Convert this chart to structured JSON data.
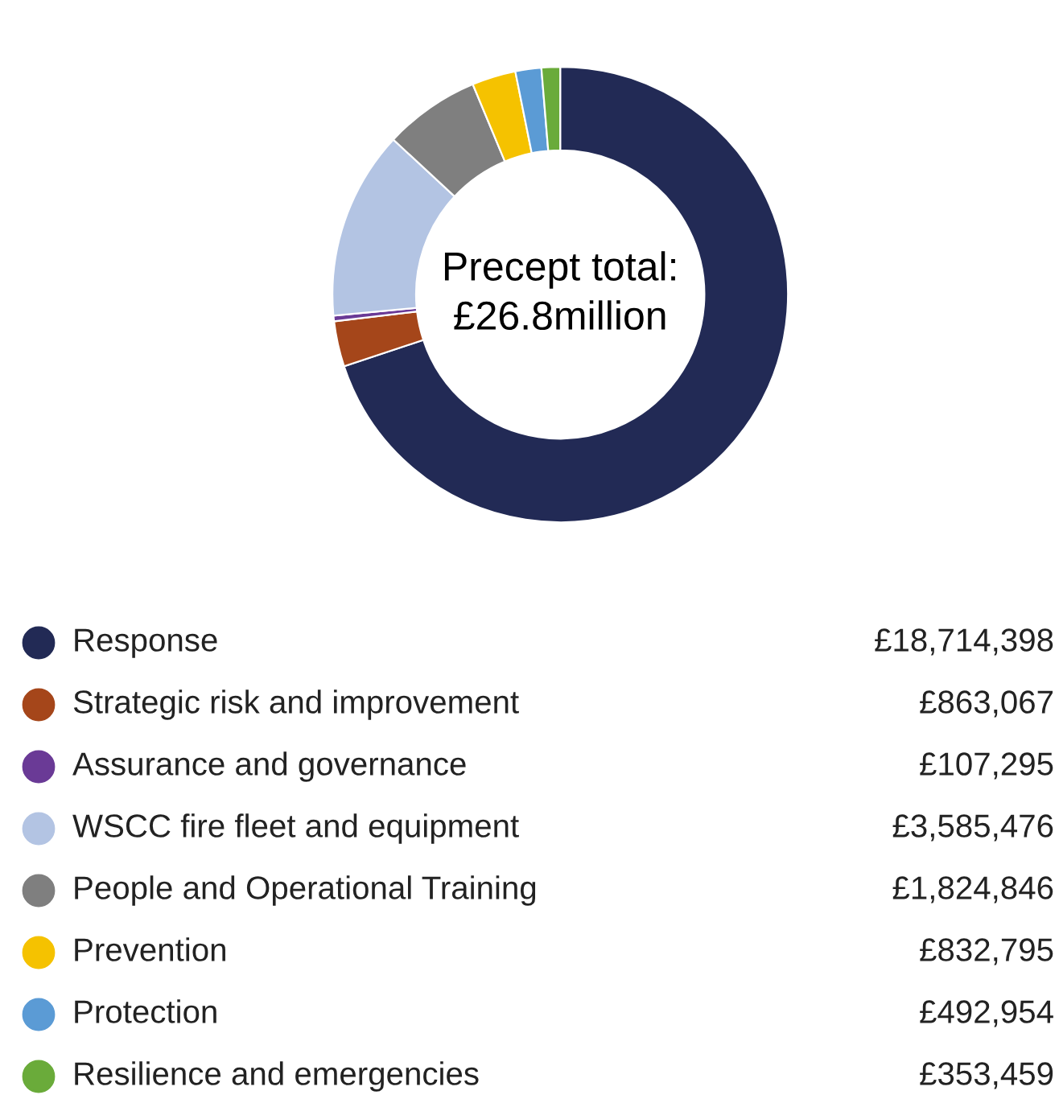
{
  "chart_data": {
    "type": "donut",
    "categories": [
      "Response",
      "Strategic risk and improvement",
      "Assurance and governance",
      "WSCC fire fleet and equipment",
      "People and Operational Training",
      "Prevention",
      "Protection",
      "Resilience and emergencies"
    ],
    "values": [
      18714398,
      863067,
      107295,
      3585476,
      1824846,
      832795,
      492954,
      353459
    ],
    "value_labels": [
      "£18,714,398",
      "£863,067",
      "£107,295",
      "£3,585,476",
      "£1,824,846",
      "£832,795",
      "£492,954",
      "£353,459"
    ],
    "colors": [
      "#222a55",
      "#a5461a",
      "#6a3a96",
      "#b3c4e3",
      "#7f7f7f",
      "#f5c200",
      "#5b9bd5",
      "#6aab3a"
    ],
    "annotations": [
      "Precept total:\n£26.8million"
    ],
    "legend": "bottom"
  }
}
